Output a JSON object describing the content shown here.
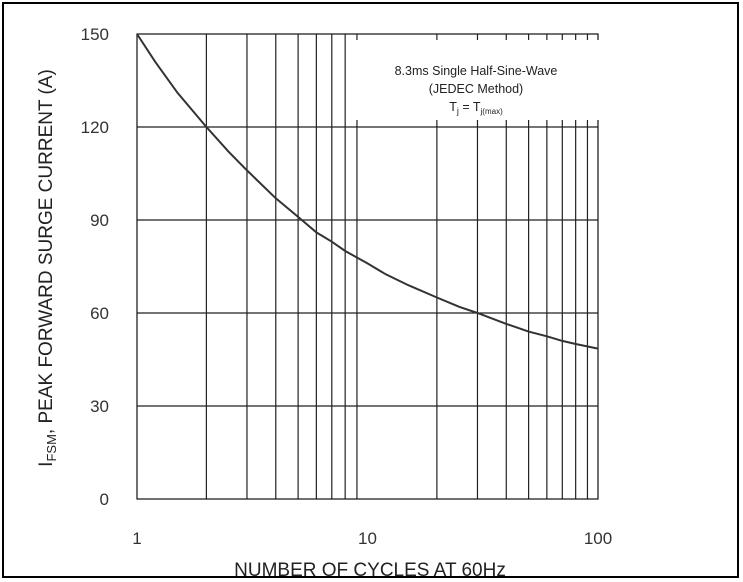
{
  "chart_data": {
    "type": "line",
    "xscale": "log",
    "xlim": [
      1,
      100
    ],
    "ylim": [
      0,
      150
    ],
    "xticks": [
      1,
      10,
      100
    ],
    "yticks": [
      0,
      30,
      60,
      90,
      120,
      150
    ],
    "xtick_labels": [
      "1",
      "10",
      "100"
    ],
    "ytick_labels": [
      "0",
      "30",
      "60",
      "90",
      "120",
      "150"
    ],
    "xlabel": "NUMBER OF CYCLES AT 60Hz",
    "ylabel": {
      "main": "I",
      "sub": "FSM",
      "rest": ", PEAK FORWARD SURGE CURRENT (A)"
    },
    "annotation": {
      "line1": "8.3ms Single Half-Sine-Wave",
      "line2": "(JEDEC Method)",
      "line3_main": "T",
      "line3_sub": "j",
      "line3_mid": " = T",
      "line3_sub2": "j(max)"
    },
    "grid": true,
    "line_color": "#333333",
    "series": [
      {
        "x": [
          1,
          1.2,
          1.5,
          2,
          2.5,
          3,
          4,
          5,
          6,
          7,
          8,
          10,
          12,
          15,
          20,
          25,
          30,
          40,
          50,
          60,
          70,
          80,
          100
        ],
        "y": [
          150,
          141,
          131,
          120,
          112,
          106,
          97,
          91,
          86,
          83,
          80,
          76,
          72.5,
          69,
          65,
          62,
          60,
          56.5,
          54,
          52.5,
          51,
          50,
          48.5
        ]
      }
    ]
  }
}
